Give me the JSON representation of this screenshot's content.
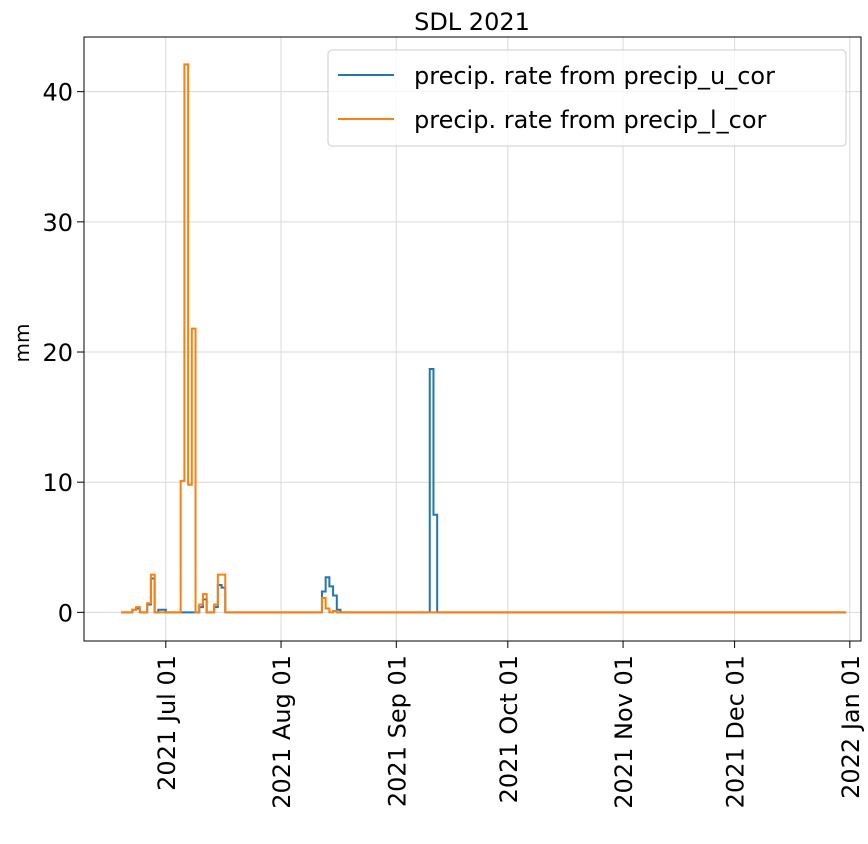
{
  "chart_data": {
    "type": "line",
    "title": "SDL 2021",
    "xlabel": "",
    "ylabel": "mm",
    "xlim": [
      "2021-06-09",
      "2022-01-04"
    ],
    "ylim": [
      -2.2,
      44.2
    ],
    "grid": true,
    "legend_position": "top-right",
    "x_ticks": [
      {
        "date": "2021-07-01",
        "label": "2021 Jul 01"
      },
      {
        "date": "2021-08-01",
        "label": "2021 Aug 01"
      },
      {
        "date": "2021-09-01",
        "label": "2021 Sep 01"
      },
      {
        "date": "2021-10-01",
        "label": "2021 Oct 01"
      },
      {
        "date": "2021-11-01",
        "label": "2021 Nov 01"
      },
      {
        "date": "2021-12-01",
        "label": "2021 Dec 01"
      },
      {
        "date": "2022-01-01",
        "label": "2022 Jan 01"
      }
    ],
    "y_ticks": [
      0,
      10,
      20,
      30,
      40
    ],
    "series": [
      {
        "name": "precip. rate from precip_u_cor",
        "color": "#1f77b4",
        "step": "post",
        "x": [
          "2021-06-19",
          "2021-06-22",
          "2021-06-23",
          "2021-06-24",
          "2021-06-25",
          "2021-06-26",
          "2021-06-27",
          "2021-06-28",
          "2021-06-29",
          "2021-07-01",
          "2021-07-02",
          "2021-07-03",
          "2021-07-04",
          "2021-07-05",
          "2021-07-06",
          "2021-07-07",
          "2021-07-08",
          "2021-07-09",
          "2021-07-10",
          "2021-07-11",
          "2021-07-12",
          "2021-07-13",
          "2021-07-14",
          "2021-07-15",
          "2021-07-16",
          "2021-07-17",
          "2021-07-18",
          "2021-08-12",
          "2021-08-13",
          "2021-08-14",
          "2021-08-15",
          "2021-08-16",
          "2021-08-17",
          "2021-08-18",
          "2021-09-10",
          "2021-09-11",
          "2021-09-12",
          "2021-09-13",
          "2021-12-31"
        ],
        "y": [
          0,
          0.2,
          0.3,
          0,
          0,
          0.6,
          2.6,
          0,
          0.2,
          0,
          0,
          0,
          0,
          0,
          0,
          0,
          0,
          0,
          0.4,
          1.0,
          0,
          0,
          0.4,
          2.1,
          1.9,
          0,
          0,
          1.6,
          2.7,
          2.0,
          1.3,
          0.2,
          0,
          0,
          18.7,
          7.5,
          0,
          0,
          0
        ]
      },
      {
        "name": "precip. rate from precip_l_cor",
        "color": "#ff7f0e",
        "step": "post",
        "x": [
          "2021-06-19",
          "2021-06-22",
          "2021-06-23",
          "2021-06-24",
          "2021-06-25",
          "2021-06-26",
          "2021-06-27",
          "2021-06-28",
          "2021-06-29",
          "2021-07-01",
          "2021-07-05",
          "2021-07-06",
          "2021-07-07",
          "2021-07-08",
          "2021-07-09",
          "2021-07-10",
          "2021-07-11",
          "2021-07-12",
          "2021-07-13",
          "2021-07-14",
          "2021-07-15",
          "2021-07-16",
          "2021-07-17",
          "2021-07-18",
          "2021-08-12",
          "2021-08-13",
          "2021-08-14",
          "2021-08-15",
          "2021-08-16",
          "2021-08-17",
          "2021-08-18",
          "2021-09-10",
          "2021-09-11",
          "2021-09-12",
          "2021-12-31"
        ],
        "y": [
          0,
          0.2,
          0.4,
          0,
          0,
          0.7,
          2.9,
          0,
          0,
          0,
          10.1,
          42.1,
          9.8,
          21.8,
          0,
          0.6,
          1.4,
          0,
          0,
          0.6,
          2.9,
          2.9,
          0,
          0,
          1.1,
          0.3,
          0,
          0.1,
          0,
          0,
          0,
          0,
          0,
          0,
          0
        ]
      }
    ]
  }
}
